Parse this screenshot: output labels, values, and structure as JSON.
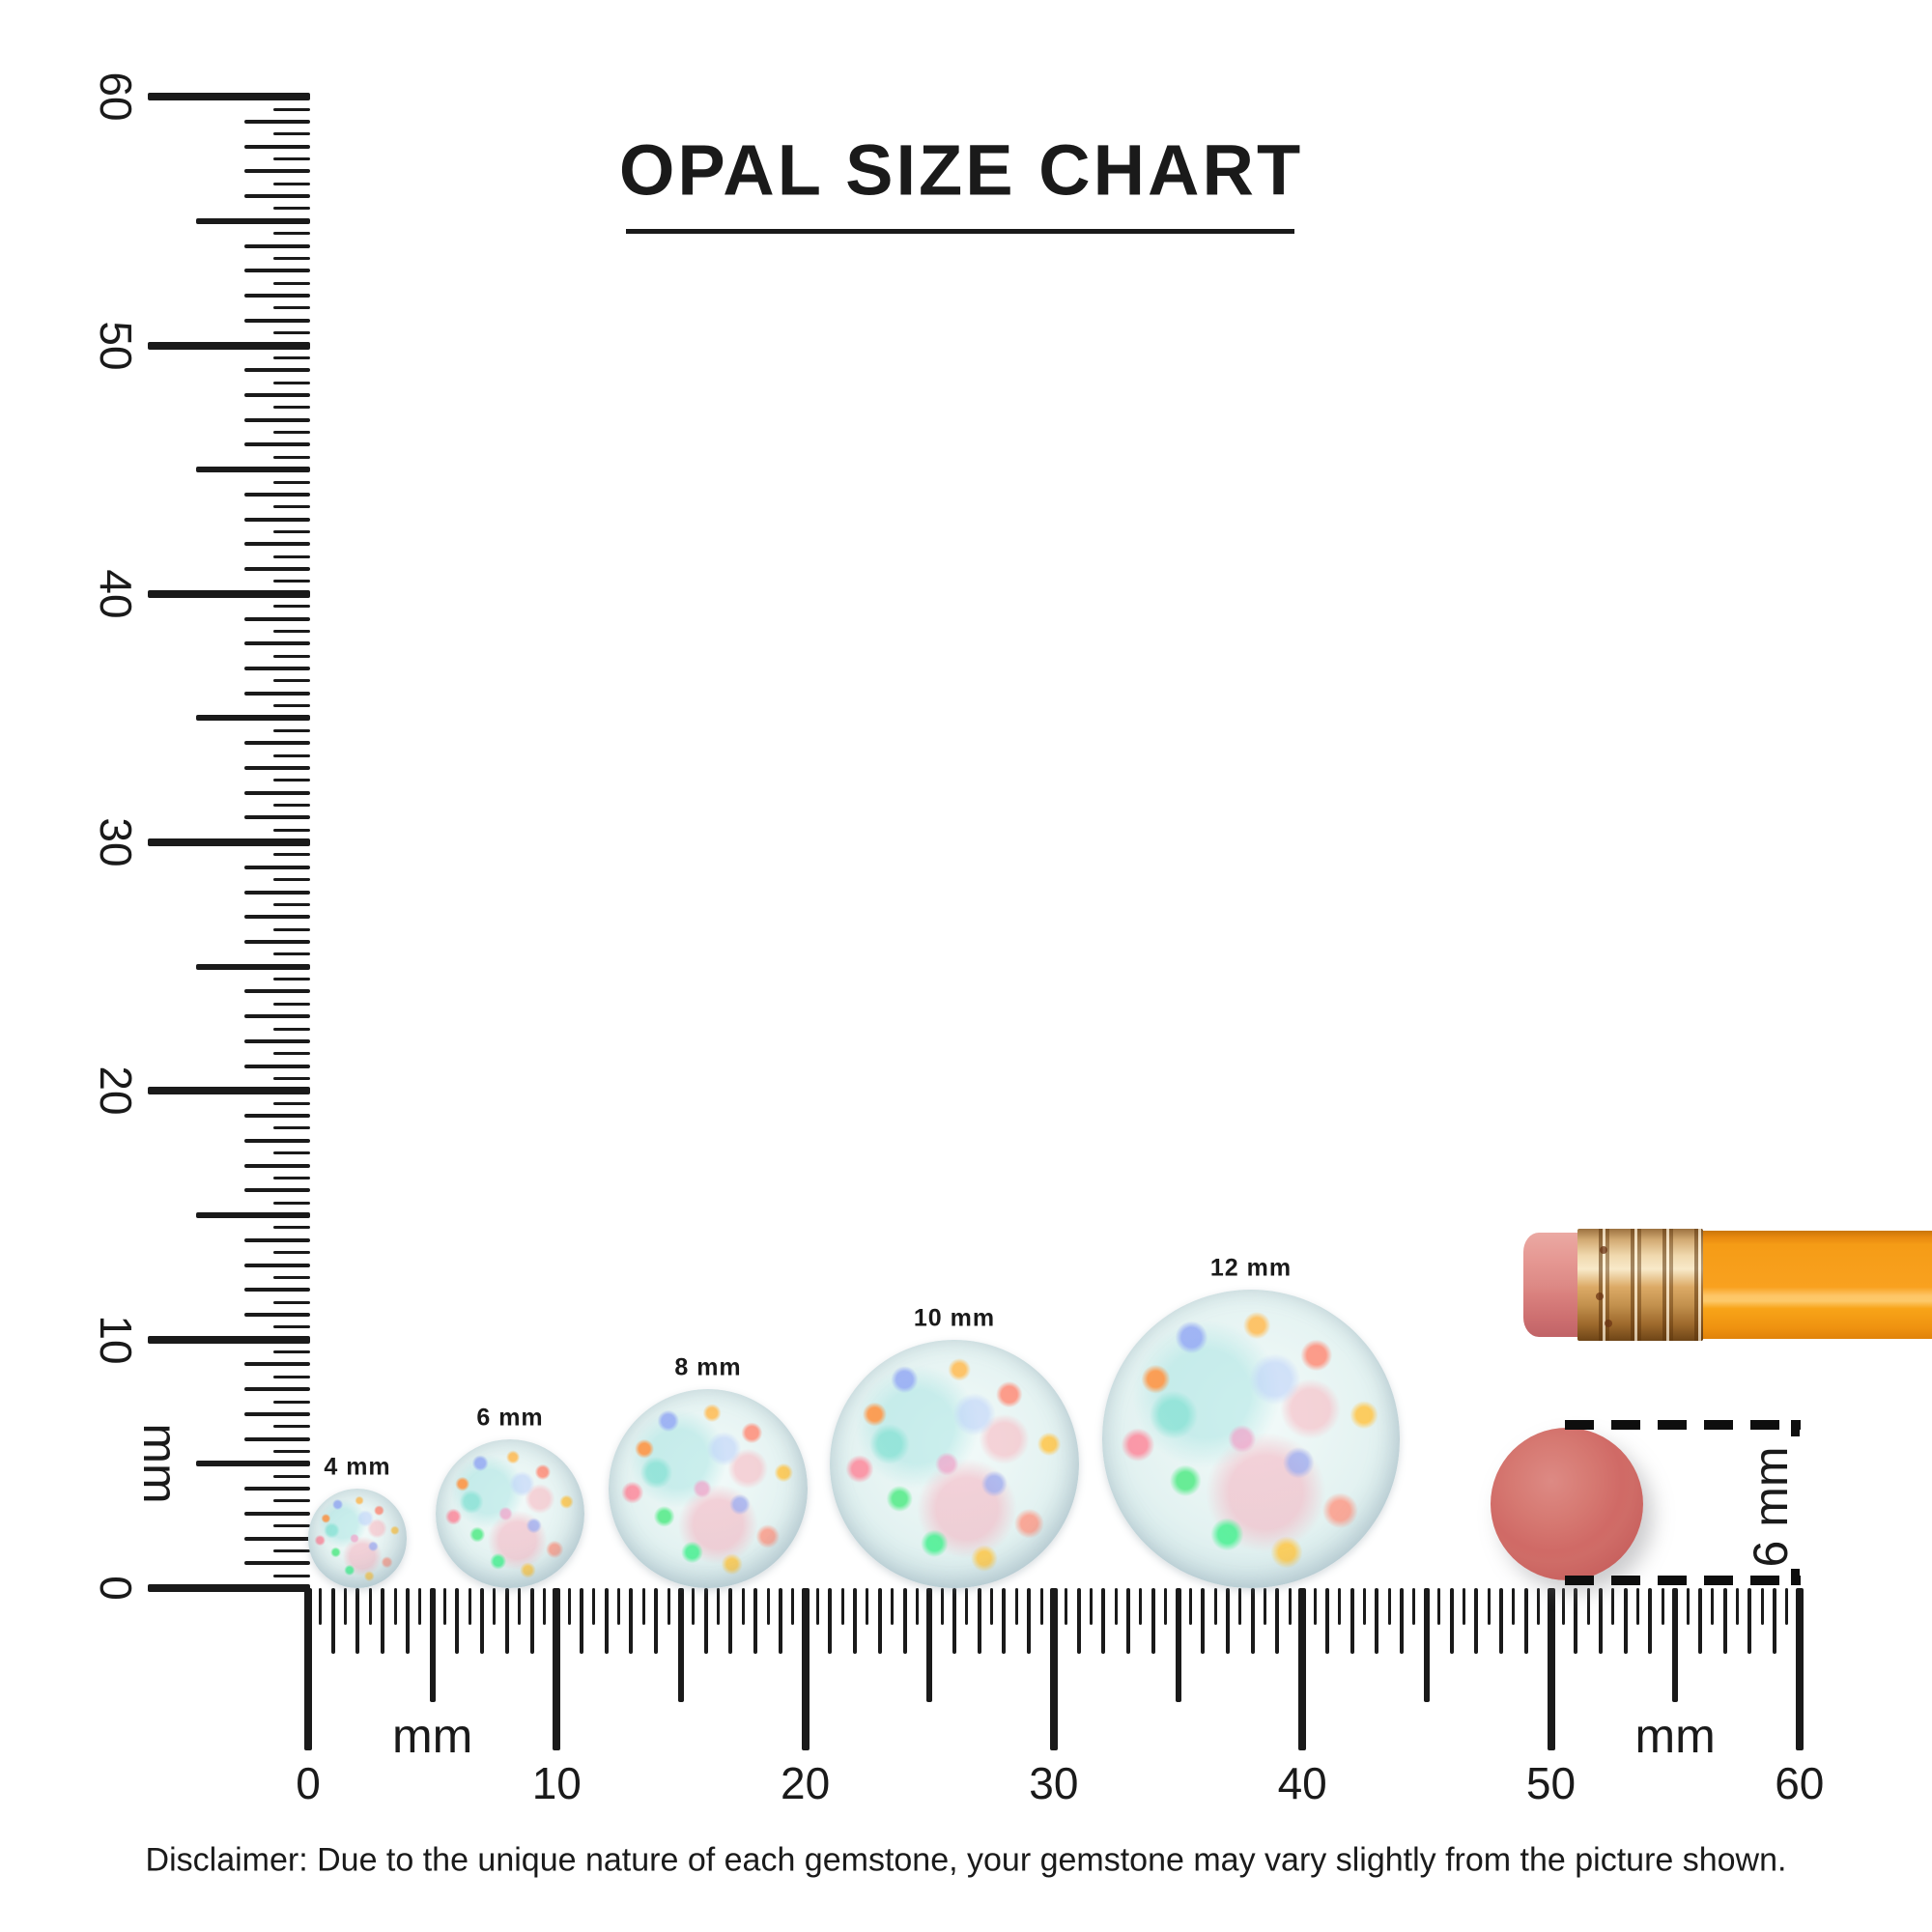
{
  "title": "OPAL SIZE CHART",
  "rulers": {
    "vertical": {
      "unit_label": "mm",
      "numbers": [
        "0",
        "10",
        "20",
        "30",
        "40",
        "50",
        "60"
      ],
      "range_mm": 60,
      "tick_step_mm": 0.5
    },
    "horizontal": {
      "unit_label": "mm",
      "numbers": [
        "0",
        "10",
        "20",
        "30",
        "40",
        "50",
        "60"
      ],
      "range_mm": 60,
      "tick_step_mm": 0.5
    }
  },
  "opals": [
    {
      "label": "4 mm",
      "size_mm": 4
    },
    {
      "label": "6 mm",
      "size_mm": 6
    },
    {
      "label": "8 mm",
      "size_mm": 8
    },
    {
      "label": "10 mm",
      "size_mm": 10
    },
    {
      "label": "12 mm",
      "size_mm": 12
    }
  ],
  "eraser_measure": {
    "label": "6 mm",
    "size_mm": 6
  },
  "disclaimer": "Disclaimer: Due to the unique nature of each gemstone, your gemstone may vary slightly from the picture shown.",
  "colors": {
    "ink": "#1a1a1a",
    "pencil_body": "#f9a11f",
    "pencil_ferrule": "#dcaa66",
    "pencil_eraser_tip": "#dd8a86",
    "eraser_disc": "#d06a66",
    "opal_base": "#e3f2f1"
  }
}
